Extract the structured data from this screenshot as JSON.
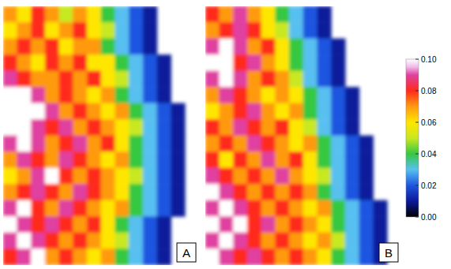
{
  "chart_data": {
    "type": "heatmap",
    "panels": [
      {
        "label": "A",
        "cells": [
          [
            0.07,
            0.06,
            0.08,
            0.07,
            0.05,
            0.07,
            0.06,
            0.04,
            0.03,
            0.02,
            0.01,
            null,
            null,
            null
          ],
          [
            0.06,
            0.07,
            0.08,
            0.06,
            0.07,
            0.08,
            0.06,
            0.05,
            0.03,
            0.02,
            0.01,
            null,
            null,
            null
          ],
          [
            0.07,
            0.08,
            0.07,
            0.08,
            0.06,
            0.07,
            0.07,
            0.04,
            0.03,
            0.02,
            0.01,
            null,
            null,
            null
          ],
          [
            0.08,
            0.07,
            0.06,
            0.08,
            0.07,
            0.08,
            0.06,
            0.06,
            0.04,
            0.03,
            0.02,
            0.01,
            null,
            null
          ],
          [
            0.09,
            0.08,
            0.07,
            0.07,
            0.08,
            0.07,
            0.08,
            0.06,
            0.05,
            0.03,
            0.02,
            0.01,
            null,
            null
          ],
          [
            0.1,
            0.1,
            0.09,
            0.07,
            0.08,
            0.07,
            0.06,
            0.07,
            0.04,
            0.03,
            0.02,
            0.01,
            null,
            null
          ],
          [
            0.1,
            0.1,
            0.1,
            0.09,
            0.07,
            0.08,
            0.07,
            0.06,
            0.07,
            0.04,
            0.03,
            0.02,
            0.01,
            null
          ],
          [
            0.1,
            0.1,
            0.09,
            0.08,
            0.09,
            0.07,
            0.08,
            0.07,
            0.06,
            0.05,
            0.03,
            0.02,
            0.01,
            null
          ],
          [
            0.09,
            0.1,
            0.09,
            0.07,
            0.08,
            0.09,
            0.07,
            0.08,
            0.06,
            0.04,
            0.03,
            0.02,
            0.01,
            null
          ],
          [
            0.07,
            0.09,
            0.08,
            0.07,
            0.09,
            0.08,
            0.07,
            0.06,
            0.07,
            0.04,
            0.03,
            0.02,
            0.01,
            null
          ],
          [
            0.06,
            0.07,
            0.09,
            0.1,
            0.08,
            0.07,
            0.08,
            0.07,
            0.06,
            0.05,
            0.03,
            0.02,
            0.01,
            null
          ],
          [
            0.07,
            0.08,
            0.09,
            0.08,
            0.07,
            0.09,
            0.08,
            0.07,
            0.06,
            0.04,
            0.03,
            0.02,
            0.01,
            null
          ],
          [
            0.09,
            0.1,
            0.08,
            0.07,
            0.09,
            0.08,
            0.07,
            0.06,
            0.07,
            0.04,
            0.03,
            0.02,
            0.01,
            null
          ],
          [
            0.1,
            0.09,
            0.08,
            0.09,
            0.08,
            0.07,
            0.08,
            0.06,
            0.04,
            0.03,
            0.02,
            0.01,
            null,
            null
          ],
          [
            0.09,
            0.1,
            0.09,
            0.08,
            0.07,
            0.08,
            0.07,
            0.06,
            0.05,
            0.03,
            0.02,
            0.01,
            null,
            null
          ],
          [
            0.08,
            0.09,
            0.1,
            0.07,
            0.08,
            0.07,
            0.06,
            0.07,
            0.04,
            0.03,
            0.02,
            0.01,
            null,
            null
          ]
        ]
      },
      {
        "label": "B",
        "cells": [
          [
            0.08,
            0.07,
            0.09,
            0.07,
            0.06,
            0.04,
            0.03,
            0.02,
            0.01,
            null,
            null,
            null,
            null,
            null
          ],
          [
            0.07,
            0.08,
            0.09,
            0.08,
            0.06,
            0.05,
            0.03,
            0.02,
            0.01,
            null,
            null,
            null,
            null,
            null
          ],
          [
            0.09,
            0.1,
            0.09,
            0.07,
            0.08,
            0.06,
            0.04,
            0.03,
            0.02,
            0.01,
            null,
            null,
            null,
            null
          ],
          [
            0.1,
            0.1,
            0.08,
            0.09,
            0.07,
            0.06,
            0.04,
            0.03,
            0.02,
            0.01,
            null,
            null,
            null,
            null
          ],
          [
            0.09,
            0.1,
            0.09,
            0.07,
            0.08,
            0.07,
            0.05,
            0.03,
            0.02,
            0.01,
            null,
            null,
            null,
            null
          ],
          [
            0.07,
            0.09,
            0.08,
            0.07,
            0.06,
            0.07,
            0.06,
            0.04,
            0.03,
            0.02,
            0.01,
            null,
            null,
            null
          ],
          [
            0.06,
            0.07,
            0.08,
            0.09,
            0.07,
            0.06,
            0.07,
            0.04,
            0.03,
            0.02,
            0.01,
            null,
            null,
            null
          ],
          [
            0.08,
            0.07,
            0.09,
            0.08,
            0.07,
            0.08,
            0.06,
            0.05,
            0.03,
            0.02,
            0.01,
            null,
            null,
            null
          ],
          [
            0.07,
            0.08,
            0.07,
            0.09,
            0.08,
            0.07,
            0.06,
            0.07,
            0.04,
            0.03,
            0.02,
            0.01,
            null,
            null
          ],
          [
            0.08,
            0.06,
            0.08,
            0.07,
            0.09,
            0.07,
            0.08,
            0.06,
            0.04,
            0.03,
            0.02,
            0.01,
            null,
            null
          ],
          [
            0.09,
            0.08,
            0.07,
            0.08,
            0.07,
            0.09,
            0.07,
            0.06,
            0.05,
            0.03,
            0.02,
            0.01,
            null,
            null
          ],
          [
            0.1,
            0.09,
            0.08,
            0.07,
            0.08,
            0.07,
            0.08,
            0.07,
            0.04,
            0.03,
            0.02,
            0.01,
            null,
            null
          ],
          [
            0.09,
            0.1,
            0.09,
            0.08,
            0.07,
            0.08,
            0.07,
            0.06,
            0.07,
            0.04,
            0.03,
            0.02,
            0.01,
            null
          ],
          [
            0.1,
            0.09,
            0.1,
            0.08,
            0.09,
            0.07,
            0.08,
            0.07,
            0.06,
            0.04,
            0.03,
            0.02,
            0.01,
            null
          ],
          [
            0.09,
            0.1,
            0.09,
            0.08,
            0.07,
            0.08,
            0.07,
            0.06,
            0.07,
            0.05,
            0.03,
            0.02,
            0.01,
            null
          ],
          [
            0.1,
            0.09,
            0.08,
            0.09,
            0.08,
            0.07,
            0.08,
            0.07,
            0.06,
            0.04,
            0.03,
            0.02,
            0.01,
            null
          ]
        ]
      }
    ],
    "colorbar": {
      "range": [
        0,
        0.1
      ],
      "ticks": [
        {
          "value": 0.1,
          "label": "0.10"
        },
        0.08,
        0.06,
        0.04,
        0.02,
        {
          "value": 0,
          "label": "0.00"
        }
      ]
    }
  }
}
